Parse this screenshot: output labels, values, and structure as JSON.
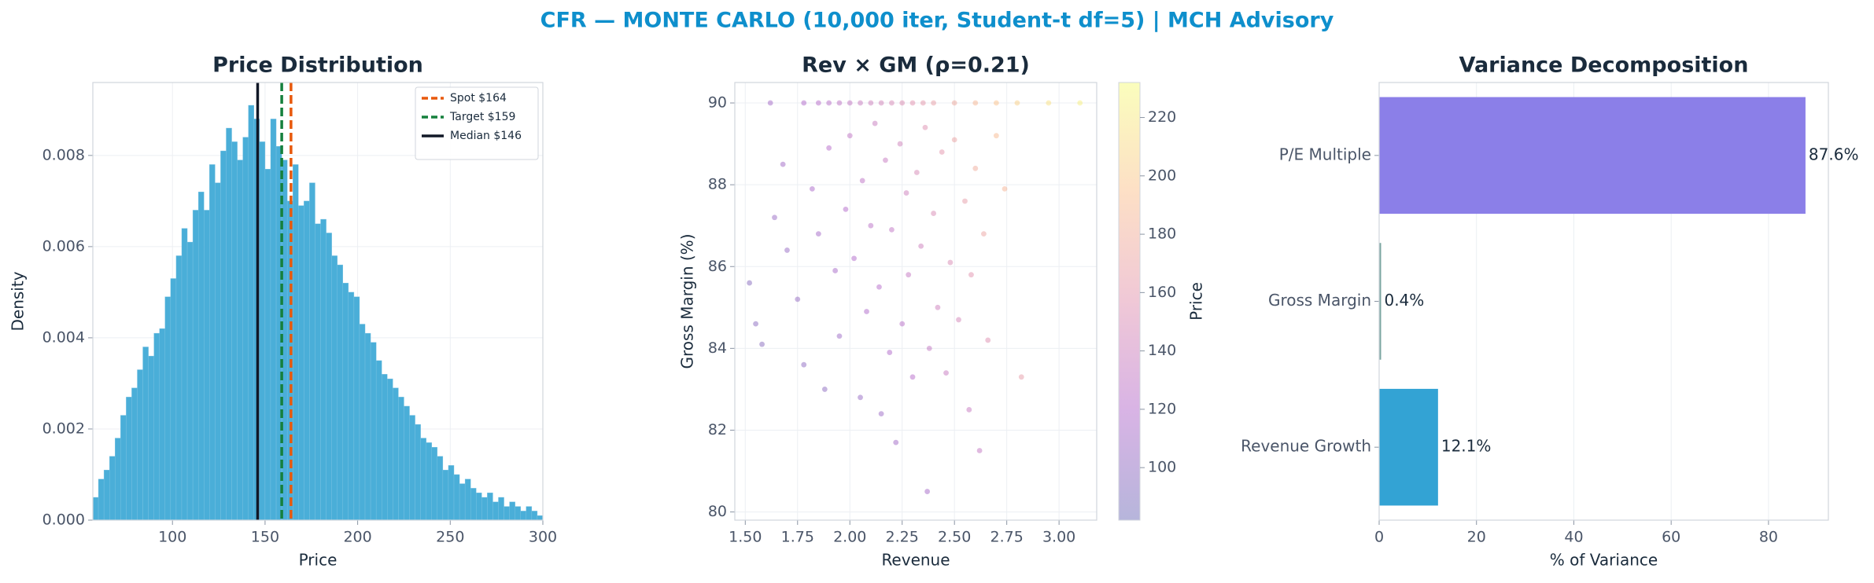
{
  "title": "CFR — MONTE CARLO (10,000 iter, Student-t df=5) | MCH Advisory",
  "chart_data": [
    {
      "type": "histogram",
      "title": "Price Distribution",
      "x_label": "Price",
      "y_label": "Density",
      "bins": [
        57,
        60,
        63,
        66,
        69,
        72,
        75,
        78,
        81,
        84,
        87,
        90,
        93,
        96,
        99,
        102,
        105,
        108,
        111,
        114,
        117,
        120,
        123,
        126,
        129,
        132,
        135,
        138,
        141,
        144,
        147,
        150,
        153,
        156,
        159,
        162,
        165,
        168,
        171,
        174,
        177,
        180,
        183,
        186,
        189,
        192,
        195,
        198,
        201,
        204,
        207,
        210,
        213,
        216,
        219,
        222,
        225,
        228,
        231,
        234,
        237,
        240,
        243,
        246,
        249,
        252,
        255,
        258,
        261,
        264,
        267,
        270,
        273,
        276,
        279,
        282,
        285,
        288,
        291,
        294,
        297,
        300
      ],
      "values": [
        0.0005,
        0.0009,
        0.0011,
        0.0014,
        0.0018,
        0.0023,
        0.0027,
        0.0029,
        0.0033,
        0.0038,
        0.0036,
        0.0041,
        0.0042,
        0.0049,
        0.0053,
        0.0058,
        0.0064,
        0.0061,
        0.0068,
        0.0072,
        0.0068,
        0.0078,
        0.0074,
        0.0081,
        0.0086,
        0.0083,
        0.0079,
        0.0084,
        0.0091,
        0.0088,
        0.0083,
        0.0077,
        0.0088,
        0.0082,
        0.0079,
        0.007,
        0.0078,
        0.0069,
        0.007,
        0.0074,
        0.0065,
        0.0066,
        0.0063,
        0.0058,
        0.0056,
        0.0052,
        0.005,
        0.0049,
        0.0043,
        0.0041,
        0.0039,
        0.0035,
        0.0032,
        0.0031,
        0.0029,
        0.0027,
        0.0025,
        0.0023,
        0.0021,
        0.0018,
        0.0017,
        0.0016,
        0.0014,
        0.0011,
        0.0012,
        0.001,
        0.0008,
        0.0009,
        0.0007,
        0.0006,
        0.0005,
        0.0006,
        0.0004,
        0.0005,
        0.0003,
        0.0004,
        0.0003,
        0.0002,
        0.0003,
        0.0002,
        0.0001
      ],
      "color": "#4aaed8",
      "xlim": [
        57,
        300
      ],
      "ylim": [
        0,
        0.0096
      ],
      "xticks": [
        100,
        150,
        200,
        250,
        300
      ],
      "yticks": [
        {
          "value": 0,
          "label": "0.000"
        },
        {
          "value": 0.002,
          "label": "0.002"
        },
        {
          "value": 0.004,
          "label": "0.004"
        },
        {
          "value": 0.006,
          "label": "0.006"
        },
        {
          "value": 0.008,
          "label": "0.008"
        }
      ],
      "grid": true,
      "legend": "upper right",
      "reference_lines": [
        {
          "name": "Spot $164",
          "value": 164,
          "color": "#e8590c",
          "style": "dashed"
        },
        {
          "name": "Target $159",
          "value": 159,
          "color": "#15803d",
          "style": "dashed"
        },
        {
          "name": "Median $146",
          "value": 146,
          "color": "#111827",
          "style": "solid"
        }
      ]
    },
    {
      "type": "scatter",
      "title": "Rev × GM (ρ=0.21)",
      "x_label": "Revenue",
      "y_label": "Gross Margin (%)",
      "colorbar_label": "Price",
      "x": [
        1.62,
        1.78,
        1.85,
        1.9,
        1.95,
        2.0,
        2.05,
        2.1,
        2.15,
        2.2,
        2.25,
        2.3,
        2.35,
        2.4,
        2.5,
        2.6,
        2.7,
        2.8,
        2.95,
        3.1,
        1.52,
        1.55,
        1.58,
        1.64,
        1.68,
        1.7,
        1.75,
        1.78,
        1.82,
        1.85,
        1.88,
        1.9,
        1.93,
        1.95,
        1.98,
        2.0,
        2.02,
        2.05,
        2.06,
        2.08,
        2.1,
        2.12,
        2.14,
        2.15,
        2.17,
        2.19,
        2.2,
        2.22,
        2.24,
        2.25,
        2.27,
        2.28,
        2.3,
        2.32,
        2.34,
        2.36,
        2.37,
        2.38,
        2.4,
        2.42,
        2.44,
        2.46,
        2.48,
        2.5,
        2.52,
        2.55,
        2.57,
        2.58,
        2.6,
        2.62,
        2.64,
        2.66,
        2.7,
        2.74,
        2.82
      ],
      "y": [
        90,
        90,
        90,
        90,
        90,
        90,
        90,
        90,
        90,
        90,
        90,
        90,
        90,
        90,
        90,
        90,
        90,
        90,
        90,
        90,
        85.6,
        84.6,
        84.1,
        87.2,
        88.5,
        86.4,
        85.2,
        83.6,
        87.9,
        86.8,
        83.0,
        88.9,
        85.9,
        84.3,
        87.4,
        89.2,
        86.2,
        82.8,
        88.1,
        84.9,
        87.0,
        89.5,
        85.5,
        82.4,
        88.6,
        83.9,
        86.9,
        81.7,
        89.0,
        84.6,
        87.8,
        85.8,
        83.3,
        88.3,
        86.5,
        89.4,
        80.5,
        84.0,
        87.3,
        85.0,
        88.8,
        83.4,
        86.1,
        89.1,
        84.7,
        87.6,
        82.5,
        85.8,
        88.4,
        81.5,
        86.8,
        84.2,
        89.2,
        87.9,
        83.3
      ],
      "c": [
        112,
        118,
        122,
        125,
        128,
        132,
        136,
        140,
        144,
        148,
        152,
        157,
        162,
        167,
        176,
        186,
        196,
        205,
        215,
        225,
        95,
        98,
        96,
        105,
        110,
        104,
        103,
        100,
        115,
        112,
        99,
        122,
        113,
        108,
        120,
        130,
        118,
        104,
        128,
        117,
        126,
        136,
        122,
        108,
        135,
        118,
        130,
        110,
        142,
        125,
        140,
        133,
        122,
        148,
        140,
        155,
        112,
        132,
        150,
        140,
        160,
        135,
        150,
        170,
        145,
        165,
        135,
        158,
        178,
        132,
        172,
        155,
        190,
        185,
        165
      ],
      "colormap": [
        "#0d0887",
        "#7e03a8",
        "#cc4778",
        "#f89540",
        "#f0f921"
      ],
      "alpha": 0.3,
      "xlim": [
        1.45,
        3.18
      ],
      "ylim": [
        79.8,
        90.5
      ],
      "clim": [
        82,
        232
      ],
      "xticks": [
        {
          "value": 1.5,
          "label": "1.50"
        },
        1.75,
        {
          "value": 2.0,
          "label": "2.00"
        },
        2.25,
        {
          "value": 2.5,
          "label": "2.50"
        },
        2.75,
        {
          "value": 3.0,
          "label": "3.00"
        }
      ],
      "yticks": [
        80,
        82,
        84,
        86,
        88,
        90
      ],
      "cticks": [
        100,
        120,
        140,
        160,
        180,
        200,
        220
      ],
      "grid": true
    },
    {
      "type": "hbar",
      "title": "Variance Decomposition",
      "x_label": "% of Variance",
      "categories": [
        "Revenue Growth",
        "Gross Margin",
        "P/E Multiple"
      ],
      "values": [
        12.1,
        0.4,
        87.6
      ],
      "value_labels": [
        "12.1%",
        "0.4%",
        "87.6%"
      ],
      "colors": [
        "#33a3d4",
        "#7aa6a0",
        "#8b7fe8"
      ],
      "xlim": [
        0,
        92.3
      ],
      "xticks": [
        0,
        20,
        40,
        60,
        80
      ],
      "grid": true
    }
  ]
}
